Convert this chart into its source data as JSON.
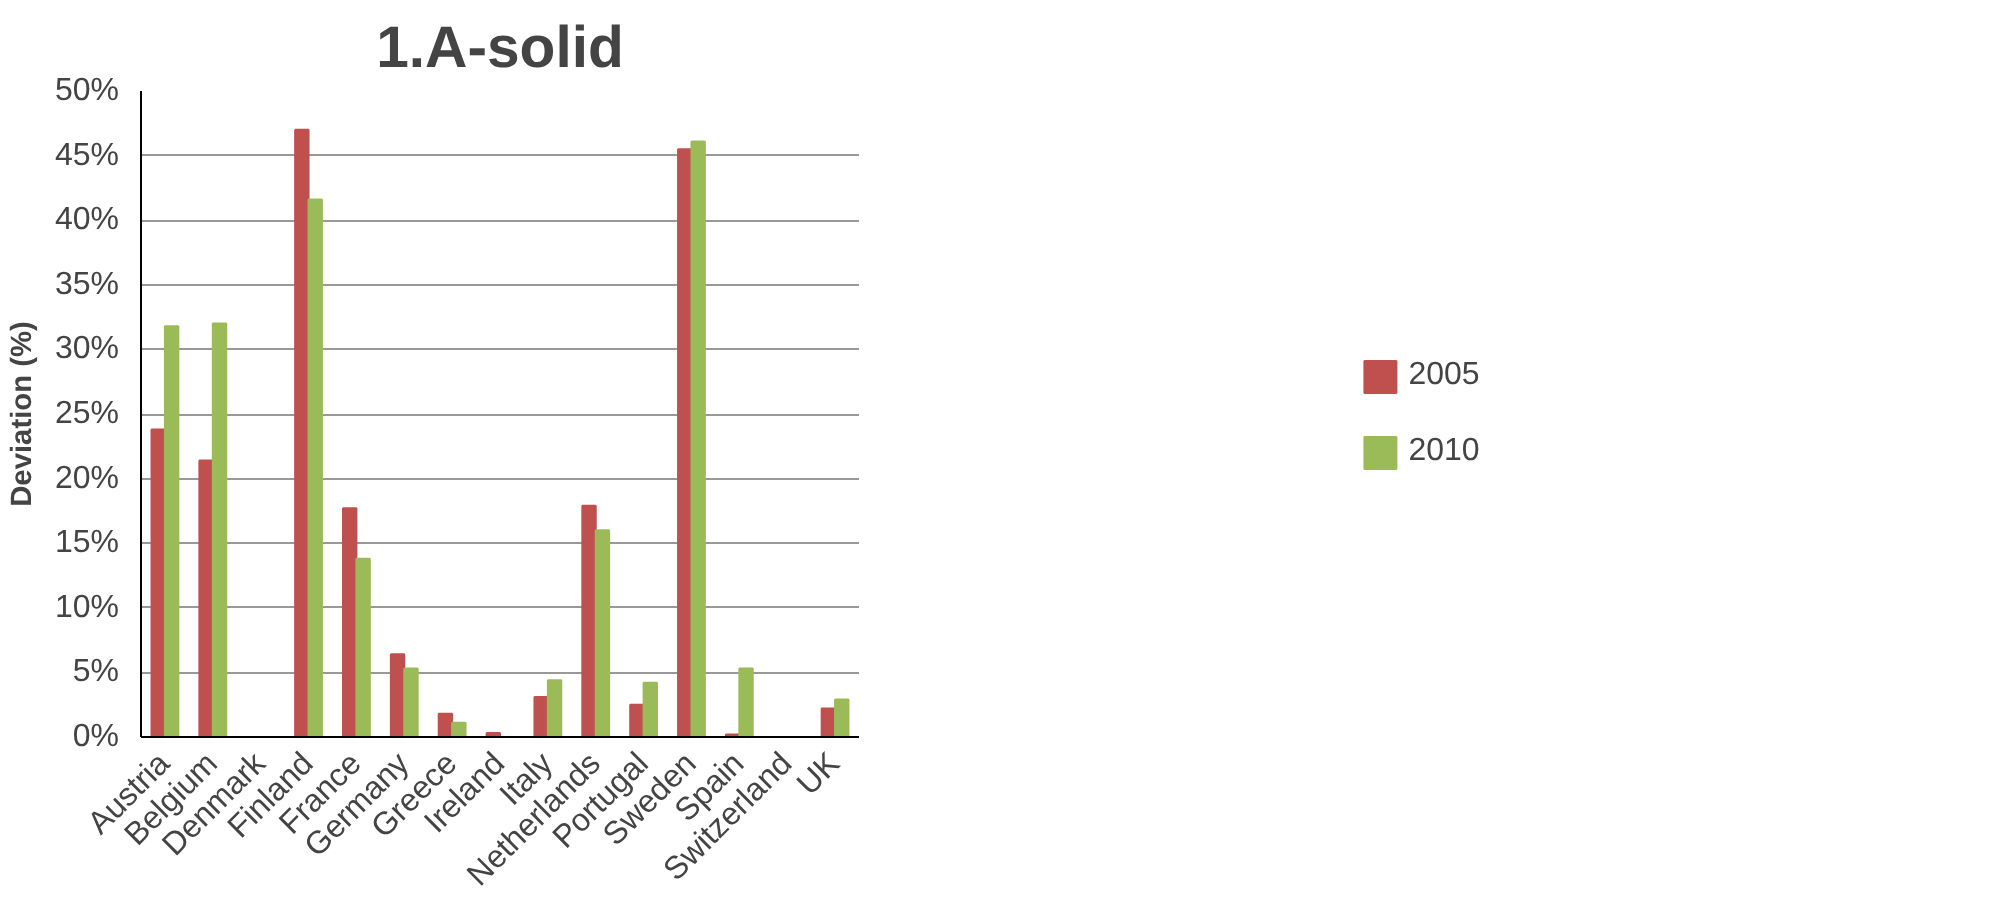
{
  "chart_data": {
    "type": "bar",
    "title": "1.A-solid",
    "ylabel": "Deviation (%)",
    "categories": [
      "Austria",
      "Belgium",
      "Denmark",
      "Finland",
      "France",
      "Germany",
      "Greece",
      "Ireland",
      "Italy",
      "Netherlands",
      "Portugal",
      "Sweden",
      "Spain",
      "Switzerland",
      "UK"
    ],
    "series": [
      {
        "name": "2005",
        "color": "#c0504d",
        "values": [
          23.8,
          21.4,
          0,
          47.0,
          17.7,
          6.4,
          1.8,
          0.3,
          3.1,
          17.9,
          2.5,
          45.5,
          0.2,
          0,
          2.2
        ]
      },
      {
        "name": "2010",
        "color": "#9bbb59",
        "values": [
          31.8,
          32.0,
          0,
          41.6,
          13.8,
          5.3,
          1.1,
          0,
          4.4,
          16.0,
          4.2,
          46.1,
          5.3,
          0,
          2.9
        ]
      }
    ],
    "ylim": [
      0,
      50
    ],
    "yticks": [
      {
        "value": 0,
        "label": "0%"
      },
      {
        "value": 5,
        "label": "5%"
      },
      {
        "value": 10,
        "label": "10%"
      },
      {
        "value": 15,
        "label": "15%"
      },
      {
        "value": 20,
        "label": "20%"
      },
      {
        "value": 25,
        "label": "25%"
      },
      {
        "value": 30,
        "label": "30%"
      },
      {
        "value": 35,
        "label": "35%"
      },
      {
        "value": 40,
        "label": "40%"
      },
      {
        "value": 45,
        "label": "45%"
      },
      {
        "value": 50,
        "label": "50%"
      }
    ],
    "grid": "y",
    "legend": "right"
  }
}
